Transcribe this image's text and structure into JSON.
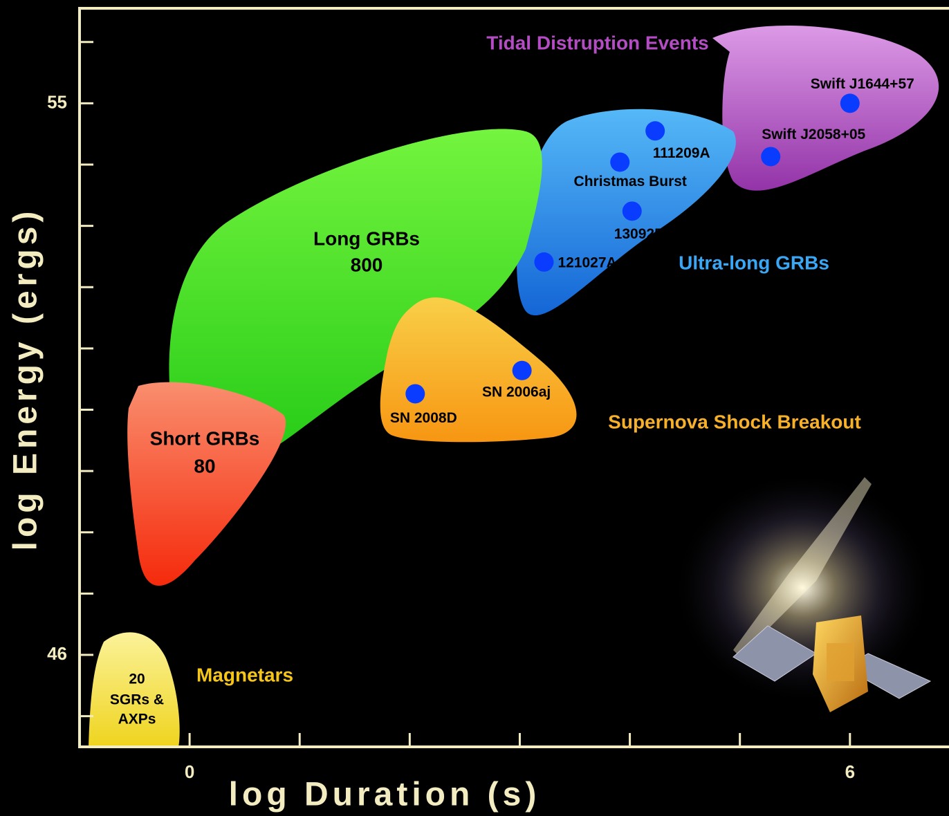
{
  "chart_data": {
    "type": "scatter",
    "x_label": "log Duration (s)",
    "y_label": "log Energy (ergs)",
    "xlim": [
      -1,
      6.9
    ],
    "ylim": [
      44.5,
      56.55
    ],
    "xticks": [
      0,
      {
        "value": 1,
        "label": null
      },
      {
        "value": 2,
        "label": null
      },
      {
        "value": 3,
        "label": null
      },
      {
        "value": 4,
        "label": null
      },
      {
        "value": 5,
        "label": null
      },
      6
    ],
    "yticks": [
      {
        "value": 45,
        "label": null
      },
      46,
      {
        "value": 47,
        "label": null
      },
      {
        "value": 48,
        "label": null
      },
      {
        "value": 49,
        "label": null
      },
      {
        "value": 50,
        "label": null
      },
      {
        "value": 51,
        "label": null
      },
      {
        "value": 52,
        "label": null
      },
      {
        "value": 53,
        "label": null
      },
      {
        "value": 54,
        "label": null
      },
      55,
      {
        "value": 56,
        "label": null
      }
    ],
    "axis_color": "#f3ecc0",
    "color": "#0a3cff",
    "labels": [
      "Swift J1644+57",
      "Swift J2058+05",
      "111209A",
      "Christmas Burst",
      "130925",
      "121027A",
      "SN 2006aj",
      "SN 2008D"
    ],
    "x": [
      6.0,
      5.28,
      4.23,
      3.91,
      4.02,
      3.22,
      3.02,
      2.05
    ],
    "y": [
      55.0,
      54.13,
      54.55,
      54.04,
      53.24,
      52.41,
      50.64,
      50.26
    ],
    "regions": [
      {
        "name": "Tidal Distruption Events",
        "color": [
          "#dc9ae6",
          "#9333a8"
        ],
        "label_color": "#b44cc4"
      },
      {
        "name": "Ultra-long GRBs",
        "color": [
          "#55b8f7",
          "#1466d6"
        ],
        "label_color": "#3aa7f5"
      },
      {
        "name": "Long GRBs",
        "count": 800,
        "color": [
          "#74f43e",
          "#27cc18"
        ],
        "label_color": "#000000"
      },
      {
        "name": "Supernova Shock Breakout",
        "color": [
          "#f9cf48",
          "#f79612"
        ],
        "label_color": "#f7b02a"
      },
      {
        "name": "Short GRBs",
        "count": 80,
        "color": [
          "#f98e6e",
          "#f52a0c"
        ],
        "label_color": "#000000"
      },
      {
        "name": "Magnetars",
        "inner": [
          "20",
          "SGRs &",
          "AXPs"
        ],
        "color": [
          "#fbf29a",
          "#efd41e"
        ],
        "label_color": "#f5c518"
      }
    ]
  }
}
